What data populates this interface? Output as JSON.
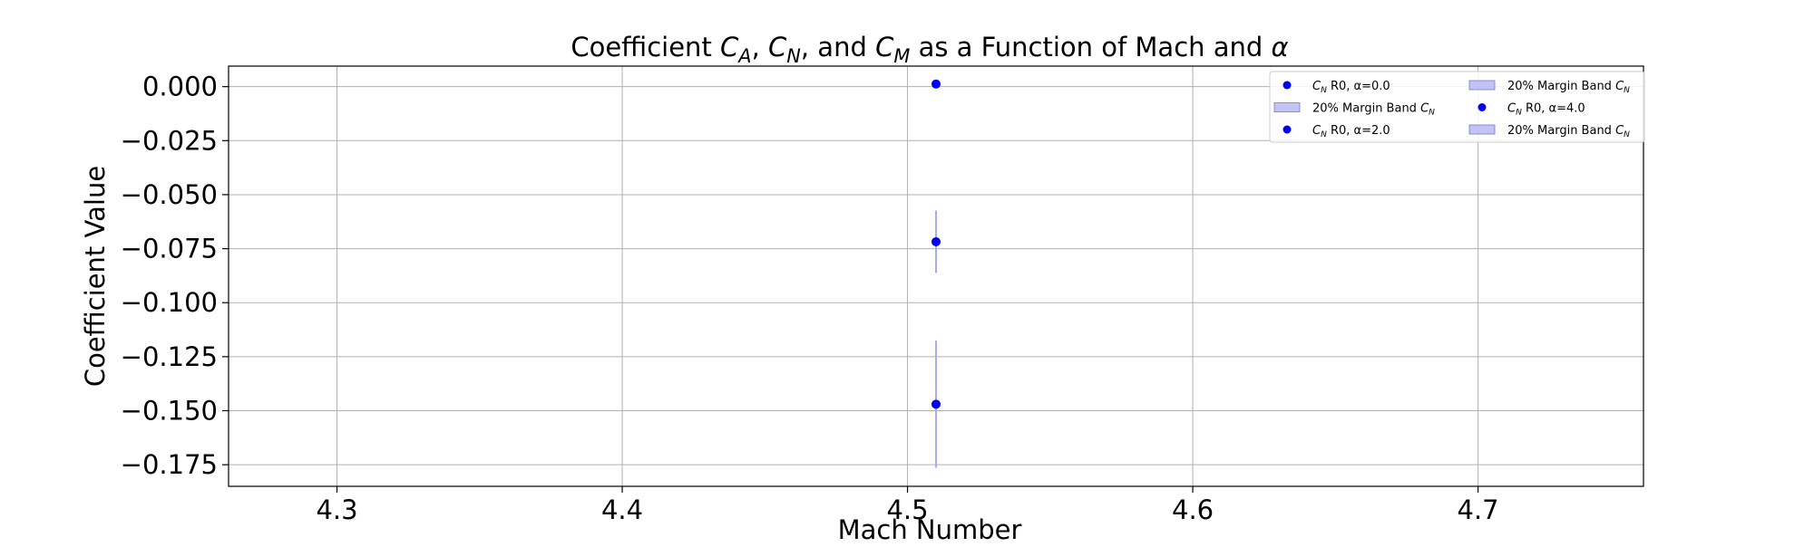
{
  "chart_data": {
    "type": "scatter",
    "title": {
      "prefix": "Coefficient ",
      "c1": "C",
      "s1": "A",
      "sep1": ", ",
      "c2": "C",
      "s2": "N",
      "sep2": ", and ",
      "c3": "C",
      "s3": "M",
      "suffix": " as a Function of Mach and ",
      "alpha": "α"
    },
    "xlabel": "Mach Number",
    "ylabel": "Coefficient Value",
    "xlim": [
      4.262,
      4.758
    ],
    "ylim": [
      -0.185,
      0.0095
    ],
    "xticks": [
      4.3,
      4.4,
      4.5,
      4.6,
      4.7
    ],
    "xtick_labels": [
      "4.3",
      "4.4",
      "4.5",
      "4.6",
      "4.7"
    ],
    "yticks": [
      0.0,
      -0.025,
      -0.05,
      -0.075,
      -0.1,
      -0.125,
      -0.15,
      -0.175
    ],
    "ytick_labels": [
      "0.000",
      "−0.025",
      "−0.050",
      "−0.075",
      "−0.100",
      "−0.125",
      "−0.150",
      "−0.175"
    ],
    "grid": true,
    "legend_position": "top-right",
    "colors": {
      "points": "#0000ee",
      "band": "#aaaaf0"
    },
    "series": [
      {
        "coef": "C",
        "sub": "N",
        "name_rest": " R0, α=0.0",
        "x": [
          4.51
        ],
        "y": [
          0.0012
        ],
        "err_low": [
          0.0
        ],
        "err_high": [
          0.0
        ]
      },
      {
        "coef": "C",
        "sub": "N",
        "name_rest": " R0, α=2.0",
        "x": [
          4.51
        ],
        "y": [
          -0.0718
        ],
        "err_low": [
          -0.0862
        ],
        "err_high": [
          -0.0574
        ]
      },
      {
        "coef": "C",
        "sub": "N",
        "name_rest": " R0, α=4.0",
        "x": [
          4.51
        ],
        "y": [
          -0.147
        ],
        "err_low": [
          -0.1764
        ],
        "err_high": [
          -0.1176
        ]
      }
    ],
    "legend": [
      {
        "kind": "marker",
        "coef": "C",
        "sub": "N",
        "rest": " R0, α=0.0"
      },
      {
        "kind": "band",
        "prefix": "20% Margin Band ",
        "coef": "C",
        "sub": "N"
      },
      {
        "kind": "marker",
        "coef": "C",
        "sub": "N",
        "rest": " R0, α=2.0"
      },
      {
        "kind": "band",
        "prefix": "20% Margin Band ",
        "coef": "C",
        "sub": "N"
      },
      {
        "kind": "marker",
        "coef": "C",
        "sub": "N",
        "rest": " R0, α=4.0"
      },
      {
        "kind": "band",
        "prefix": "20% Margin Band ",
        "coef": "C",
        "sub": "N"
      }
    ]
  }
}
